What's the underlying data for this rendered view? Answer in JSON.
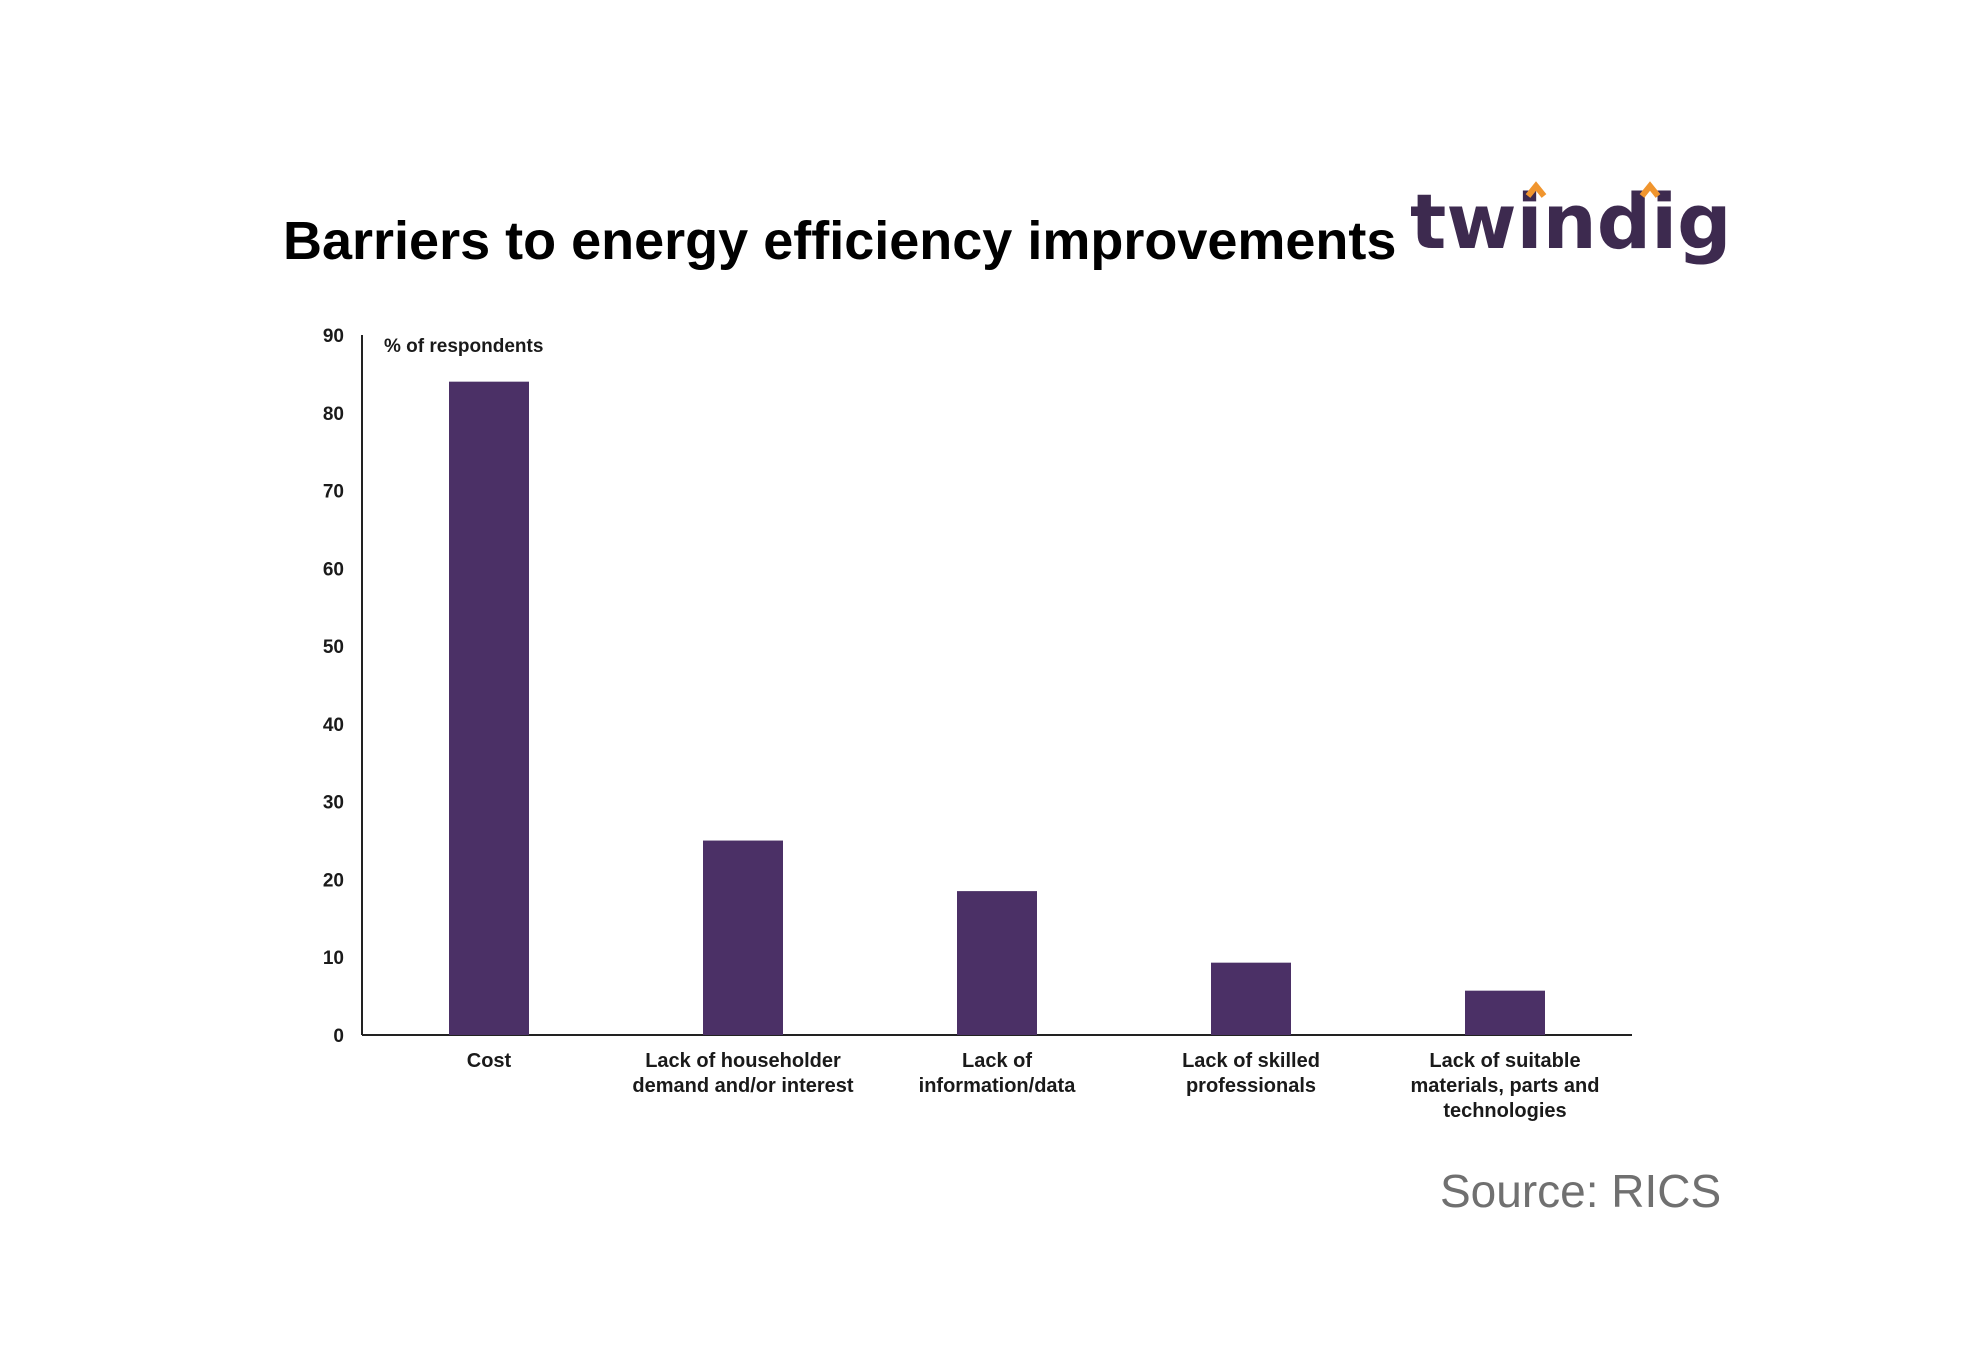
{
  "title": "Barriers to energy efficiency improvements",
  "logo": {
    "text": "twindig",
    "text_color": "#3d2a4f",
    "accent_color": "#f0952e"
  },
  "source": "Source: RICS",
  "chart_data": {
    "type": "bar",
    "ylabel": "% of respondents",
    "xlabel": "",
    "ylim": [
      0,
      90
    ],
    "yticks": [
      0,
      10,
      20,
      30,
      40,
      50,
      60,
      70,
      80,
      90
    ],
    "categories": [
      [
        "Cost"
      ],
      [
        "Lack of householder",
        "demand and/or interest"
      ],
      [
        "Lack of",
        "information/data"
      ],
      [
        "Lack of skilled",
        "professionals"
      ],
      [
        "Lack of suitable",
        "materials, parts and",
        "technologies"
      ]
    ],
    "values": [
      84,
      25,
      18.5,
      9.3,
      5.7
    ],
    "bar_color": "#4b3066",
    "grid": false
  }
}
